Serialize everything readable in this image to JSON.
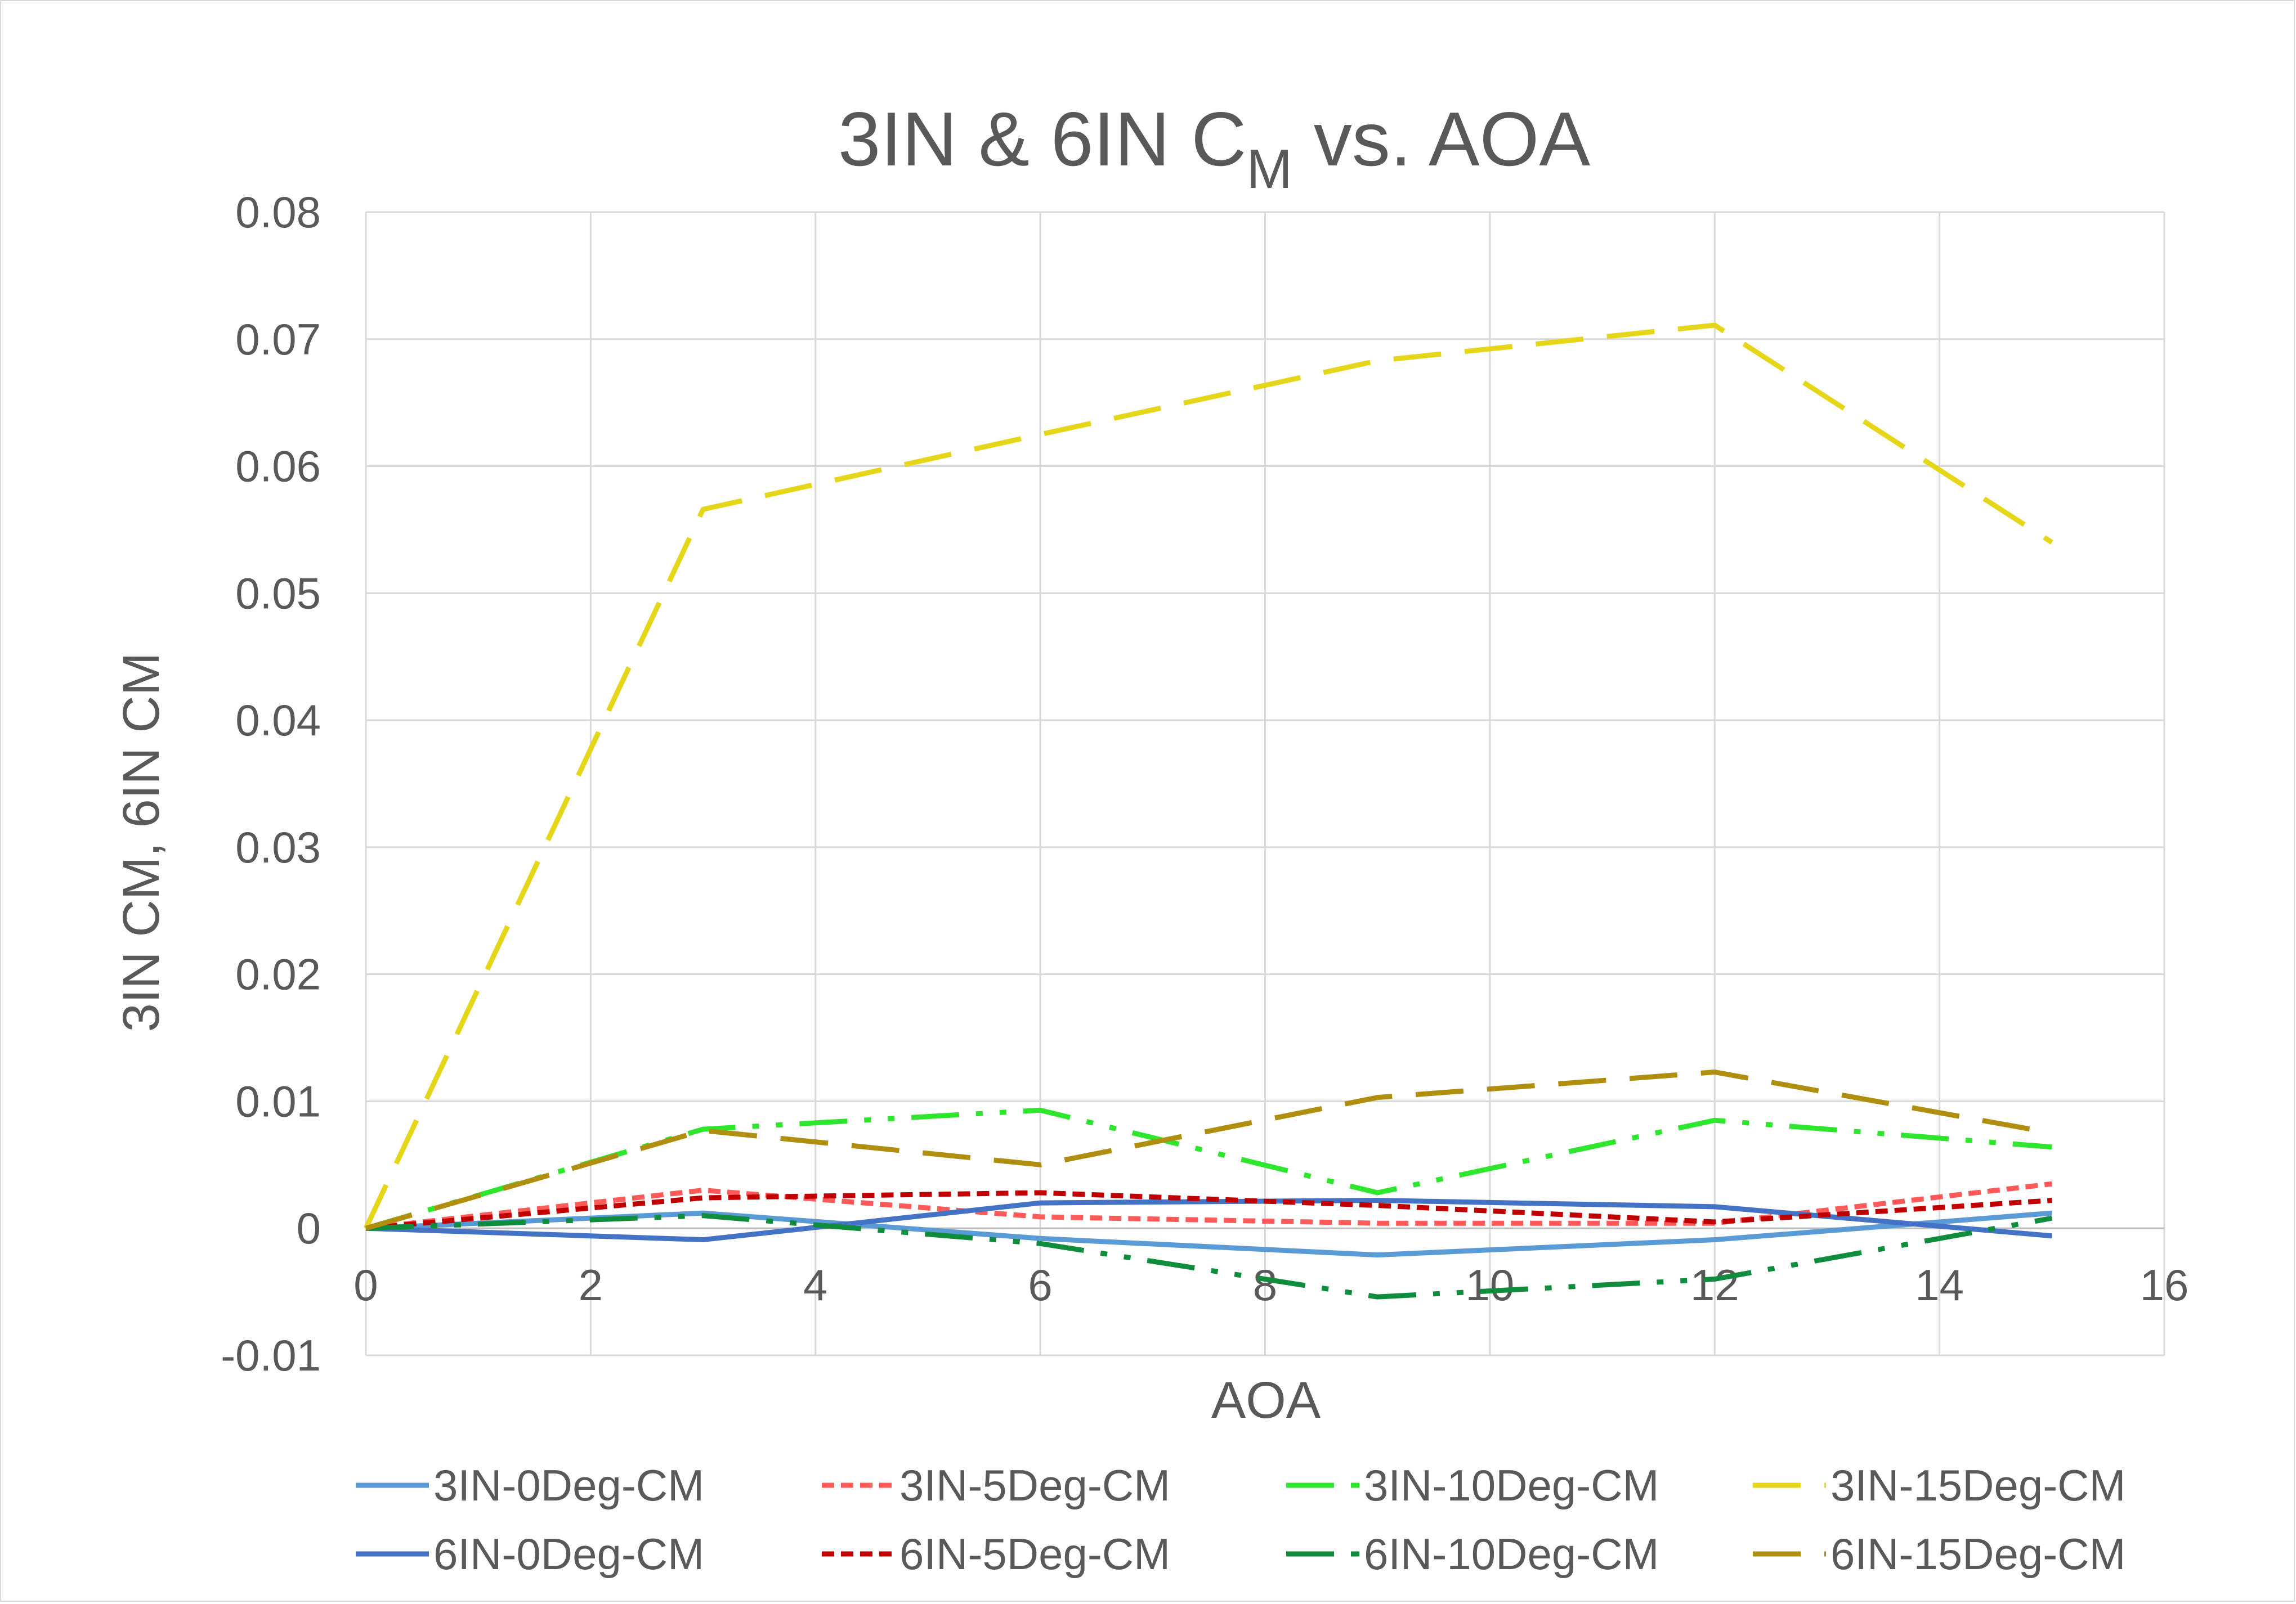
{
  "chart_data": {
    "type": "line",
    "title": "3IN & 6IN C",
    "title_subscript": "M",
    "title_suffix": " vs. AOA",
    "xlabel": "AOA",
    "ylabel": "3IN CM, 6IN CM",
    "xlim": [
      0,
      16
    ],
    "ylim": [
      -0.01,
      0.08
    ],
    "x_ticks": [
      "0",
      "2",
      "4",
      "6",
      "8",
      "10",
      "12",
      "14",
      "16"
    ],
    "y_ticks": [
      "-0.01",
      "0",
      "0.01",
      "0.02",
      "0.03",
      "0.04",
      "0.05",
      "0.06",
      "0.07",
      "0.08"
    ],
    "grid": true,
    "legend_position": "bottom",
    "x": [
      0,
      3,
      6,
      9,
      12,
      15
    ],
    "series": [
      {
        "name": "3IN-0Deg-CM",
        "color": "#5b9bd5",
        "dash": "solid",
        "values": [
          0,
          0.0012,
          -0.0008,
          -0.0021,
          -0.0009,
          0.0012
        ]
      },
      {
        "name": "3IN-5Deg-CM",
        "color": "#ff5a5a",
        "dash": "short",
        "values": [
          0,
          0.003,
          0.0009,
          0.0004,
          0.0004,
          0.0035
        ]
      },
      {
        "name": "3IN-10Deg-CM",
        "color": "#2ee62e",
        "dash": "longdashdotdot",
        "values": [
          0,
          0.0078,
          0.0093,
          0.0028,
          0.0085,
          0.0064
        ]
      },
      {
        "name": "3IN-15Deg-CM",
        "color": "#e6d619",
        "dash": "long",
        "values": [
          0,
          0.0566,
          0.0625,
          0.0683,
          0.0711,
          0.054
        ]
      },
      {
        "name": "6IN-0Deg-CM",
        "color": "#4472c4",
        "dash": "solid",
        "values": [
          0,
          -0.0009,
          0.002,
          0.0022,
          0.0017,
          -0.0006
        ]
      },
      {
        "name": "6IN-5Deg-CM",
        "color": "#c00000",
        "dash": "short",
        "values": [
          0,
          0.0024,
          0.0028,
          0.0018,
          0.0005,
          0.0022
        ]
      },
      {
        "name": "6IN-10Deg-CM",
        "color": "#0f8c3c",
        "dash": "longdashdotdot",
        "values": [
          0,
          0.001,
          -0.0012,
          -0.0054,
          -0.004,
          0.0008
        ]
      },
      {
        "name": "6IN-15Deg-CM",
        "color": "#b08f10",
        "dash": "long",
        "values": [
          0,
          0.0077,
          0.005,
          0.0103,
          0.0123,
          0.0075
        ]
      }
    ]
  }
}
